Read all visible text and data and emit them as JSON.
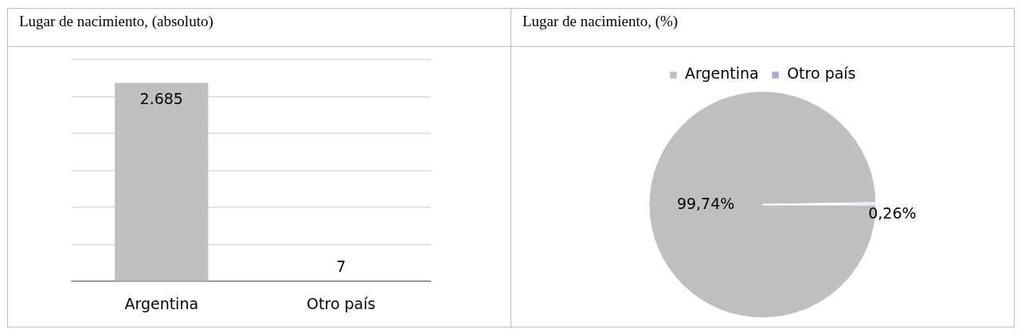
{
  "chart_data": [
    {
      "type": "bar",
      "title": "Lugar de nacimiento, (absoluto)",
      "categories": [
        "Argentina",
        "Otro país"
      ],
      "values": [
        2685,
        7
      ],
      "color": "#bfbfbf",
      "value_labels": [
        "2.685",
        "7"
      ],
      "ylim": [
        0,
        3000
      ],
      "yticks": [
        {
          "value": 0,
          "label": null
        },
        {
          "value": 500,
          "label": null
        },
        {
          "value": 1000,
          "label": null
        },
        {
          "value": 1500,
          "label": null
        },
        {
          "value": 2000,
          "label": null
        },
        {
          "value": 2500,
          "label": null
        },
        {
          "value": 3000,
          "label": null
        }
      ],
      "grid": "y",
      "tick_labels": "x",
      "legend": false
    },
    {
      "type": "pie",
      "title": "Lugar de nacimiento, (%)",
      "categories": [
        "Argentina",
        "Otro país"
      ],
      "values": [
        99.74,
        0.26
      ],
      "colors": [
        "#bfbfbf",
        "#b4a7d6"
      ],
      "value_labels": [
        "99,74%",
        "0,26%"
      ],
      "legend": "top"
    }
  ]
}
